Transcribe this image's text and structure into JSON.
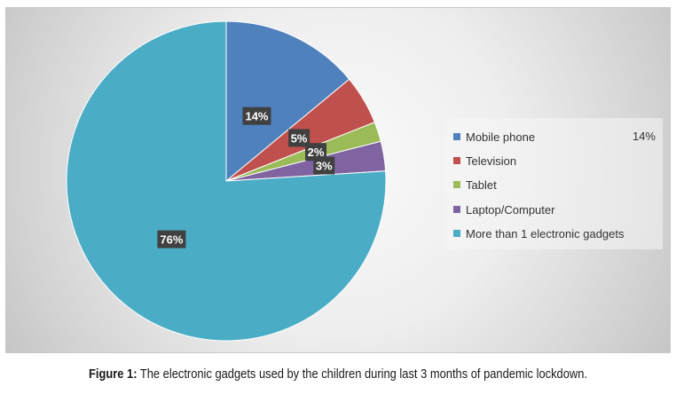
{
  "chart_data": {
    "type": "pie",
    "categories": [
      "Mobile phone",
      "Television",
      "Tablet",
      "Laptop/Computer",
      "More than 1 electronic gadgets"
    ],
    "values": [
      14,
      5,
      2,
      3,
      76
    ],
    "data_labels": [
      "14%",
      "5%",
      "2%",
      "3%",
      "76%"
    ],
    "colors": [
      "#4f81bd",
      "#c0504d",
      "#9bbb59",
      "#8064a2",
      "#4bacc6"
    ],
    "legend_placement": "right",
    "legend_extra_label": "14%"
  },
  "caption": {
    "figure_label": "Figure 1:",
    "text": " The electronic gadgets used by the children during last 3 months of pandemic lockdown."
  }
}
